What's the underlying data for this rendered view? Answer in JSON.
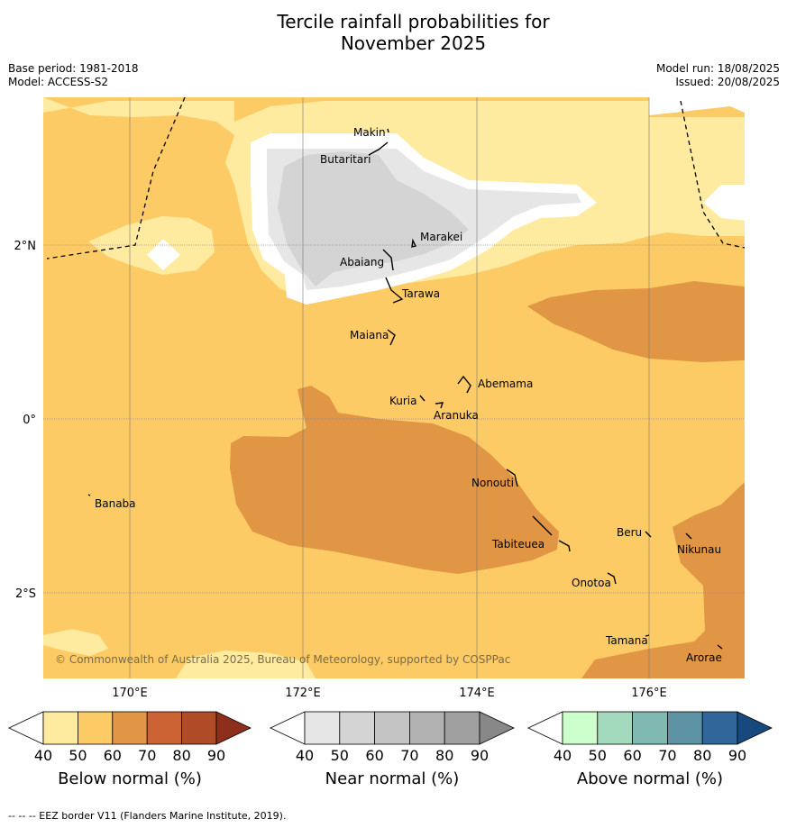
{
  "title_line1": "Tercile rainfall probabilities for",
  "title_line2": "November 2025",
  "meta_left": {
    "base_period": "Base period: 1981-2018",
    "model": "Model: ACCESS-S2"
  },
  "meta_right": {
    "model_run": "Model run: 18/08/2025",
    "issued": "Issued: 20/08/2025"
  },
  "axes": {
    "lon_ticks": [
      "170°E",
      "172°E",
      "174°E",
      "176°E"
    ],
    "lat_ticks": [
      "2°N",
      "0°",
      "2°S"
    ]
  },
  "places": {
    "makin": "Makin",
    "butaritari": "Butaritari",
    "marakei": "Marakei",
    "abaiang": "Abaiang",
    "tarawa": "Tarawa",
    "maiana": "Maiana",
    "abemama": "Abemama",
    "kuria": "Kuria",
    "aranuka": "Aranuka",
    "nonouti": "Nonouti",
    "banaba": "Banaba",
    "beru": "Beru",
    "nikunau": "Nikunau",
    "tabiteuea": "Tabiteuea",
    "onotoa": "Onotoa",
    "tamana": "Tamana",
    "arorae": "Arorae"
  },
  "copyright": "© Commonwealth of Australia 2025, Bureau of Meteorology, supported by COSPPac",
  "colorbars": [
    {
      "title": "Below normal (%)",
      "ticks": [
        "40",
        "50",
        "60",
        "70",
        "80",
        "90"
      ],
      "colors": [
        "#ffffff",
        "#ffeba0",
        "#fdcb65",
        "#e09644",
        "#cc6334",
        "#b04b28",
        "#8e2f1c"
      ]
    },
    {
      "title": "Near normal (%)",
      "ticks": [
        "40",
        "50",
        "60",
        "70",
        "80",
        "90"
      ],
      "colors": [
        "#ffffff",
        "#e6e6e6",
        "#d4d4d4",
        "#c4c4c4",
        "#b2b2b2",
        "#a0a0a0",
        "#888888"
      ]
    },
    {
      "title": "Above normal (%)",
      "ticks": [
        "40",
        "50",
        "60",
        "70",
        "80",
        "90"
      ],
      "colors": [
        "#ffffff",
        "#ccffcc",
        "#a3d9bd",
        "#80b9b1",
        "#5e93a4",
        "#31669b",
        "#17497e"
      ]
    }
  ],
  "footer": "--  --  -- EEZ border V11 (Flanders Marine Institute, 2019).",
  "map_colors": {
    "below_40_50": "#ffeba0",
    "below_50_60": "#fdcb65",
    "below_60_70": "#e09644",
    "near_40_50": "#e6e6e6",
    "near_50_60": "#d4d4d4"
  }
}
